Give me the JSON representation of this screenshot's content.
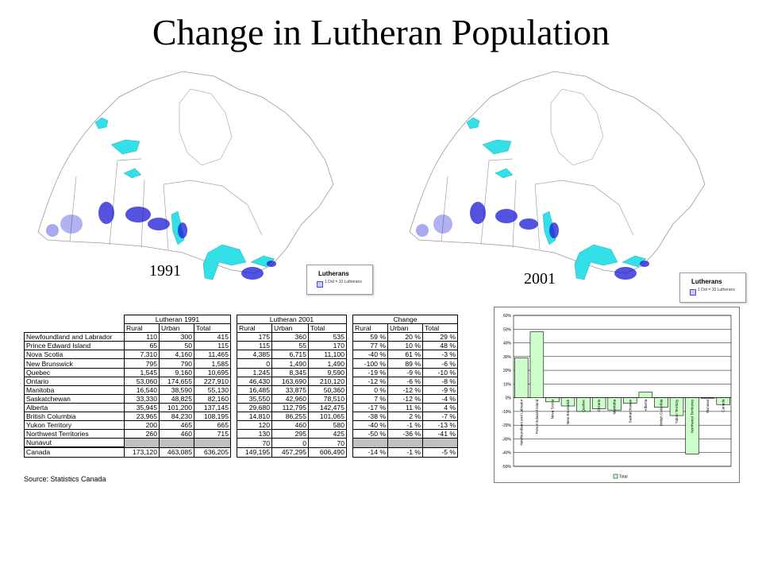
{
  "title": "Change in Lutheran Population",
  "maps": [
    {
      "year_label": "1991",
      "legend_title": "Lutherans",
      "legend_text": "1 Dot = 10 Lutherans"
    },
    {
      "year_label": "2001",
      "legend_title": "Lutherans",
      "legend_text": "1 Dot = 10 Lutherans"
    }
  ],
  "table": {
    "group_headers": [
      "Lutheran 1991",
      "Lutheran 2001",
      "Change"
    ],
    "sub_headers": [
      "Rural",
      "Urban",
      "Total"
    ],
    "rows": [
      {
        "name": "Newfoundland and Labrador",
        "v1991": [
          "110",
          "300",
          "415"
        ],
        "v2001": [
          "175",
          "360",
          "535"
        ],
        "change": [
          "59 %",
          "20 %",
          "29 %"
        ]
      },
      {
        "name": "Prince Edward Island",
        "v1991": [
          "65",
          "50",
          "115"
        ],
        "v2001": [
          "115",
          "55",
          "170"
        ],
        "change": [
          "77 %",
          "10 %",
          "48 %"
        ]
      },
      {
        "name": "Nova Scotia",
        "v1991": [
          "7,310",
          "4,160",
          "11,465"
        ],
        "v2001": [
          "4,385",
          "6,715",
          "11,100"
        ],
        "change": [
          "-40 %",
          "61 %",
          "-3 %"
        ]
      },
      {
        "name": "New Brunswick",
        "v1991": [
          "795",
          "790",
          "1,585"
        ],
        "v2001": [
          "0",
          "1,490",
          "1,490"
        ],
        "change": [
          "-100 %",
          "89 %",
          "-6 %"
        ]
      },
      {
        "name": "Quebec",
        "v1991": [
          "1,545",
          "9,160",
          "10,695"
        ],
        "v2001": [
          "1,245",
          "8,345",
          "9,590"
        ],
        "change": [
          "-19 %",
          "-9 %",
          "-10 %"
        ]
      },
      {
        "name": "Ontario",
        "v1991": [
          "53,060",
          "174,655",
          "227,910"
        ],
        "v2001": [
          "46,430",
          "163,690",
          "210,120"
        ],
        "change": [
          "-12 %",
          "-6 %",
          "-8 %"
        ]
      },
      {
        "name": "Manitoba",
        "v1991": [
          "16,540",
          "38,590",
          "55,130"
        ],
        "v2001": [
          "16,485",
          "33,875",
          "50,360"
        ],
        "change": [
          "0 %",
          "-12 %",
          "-9 %"
        ]
      },
      {
        "name": "Saskatchewan",
        "v1991": [
          "33,330",
          "48,825",
          "82,160"
        ],
        "v2001": [
          "35,550",
          "42,960",
          "78,510"
        ],
        "change": [
          "7 %",
          "-12 %",
          "-4 %"
        ]
      },
      {
        "name": "Alberta",
        "v1991": [
          "35,945",
          "101,200",
          "137,145"
        ],
        "v2001": [
          "29,680",
          "112,795",
          "142,475"
        ],
        "change": [
          "-17 %",
          "11 %",
          "4 %"
        ]
      },
      {
        "name": "British Columbia",
        "v1991": [
          "23,965",
          "84,230",
          "108,195"
        ],
        "v2001": [
          "14,810",
          "86,255",
          "101,065"
        ],
        "change": [
          "-38 %",
          "2 %",
          "-7 %"
        ]
      },
      {
        "name": "Yukon Territory",
        "v1991": [
          "200",
          "465",
          "665"
        ],
        "v2001": [
          "120",
          "460",
          "580"
        ],
        "change": [
          "-40 %",
          "-1 %",
          "-13 %"
        ]
      },
      {
        "name": "Northwest Territories",
        "v1991": [
          "260",
          "460",
          "715"
        ],
        "v2001": [
          "130",
          "295",
          "425"
        ],
        "change": [
          "-50 %",
          "-36 %",
          "-41 %"
        ]
      },
      {
        "name": "Nunavut",
        "v1991": [
          "",
          "",
          ""
        ],
        "v2001": [
          "70",
          "0",
          "70"
        ],
        "change": [
          "",
          "",
          ""
        ]
      },
      {
        "name": "Canada",
        "v1991": [
          "173,120",
          "463,085",
          "636,205"
        ],
        "v2001": [
          "149,195",
          "457,295",
          "606,490"
        ],
        "change": [
          "-14 %",
          "-1 %",
          "-5 %"
        ]
      }
    ],
    "source": "Source: Statistics Canada"
  },
  "chart_data": {
    "type": "bar",
    "categories": [
      "Newfoundland and Labrador",
      "Prince Edward Island",
      "Nova Scotia",
      "New Brunswick",
      "Quebec",
      "Ontario",
      "Manitoba",
      "Saskatchewan",
      "Alberta",
      "British Columbia",
      "Yukon Territory",
      "Northwest Territories",
      "Nunavut",
      "Canada"
    ],
    "series": [
      {
        "name": "Total",
        "values": [
          29,
          48,
          -3,
          -6,
          -10,
          -8,
          -9,
          -4,
          4,
          -7,
          -13,
          -41,
          0,
          -5
        ]
      }
    ],
    "ylim": [
      -50,
      60
    ],
    "yticks": [
      "60%",
      "50%",
      "40%",
      "30%",
      "20%",
      "10%",
      "0%",
      "-10%",
      "-20%",
      "-30%",
      "-40%",
      "-50%"
    ],
    "bar_color": "#ccffcc",
    "grid": true,
    "legend_position": "bottom"
  },
  "colors": {
    "lakes": "#33e0e8",
    "dots": "#1a1ad6",
    "bars": "#ccffcc"
  }
}
